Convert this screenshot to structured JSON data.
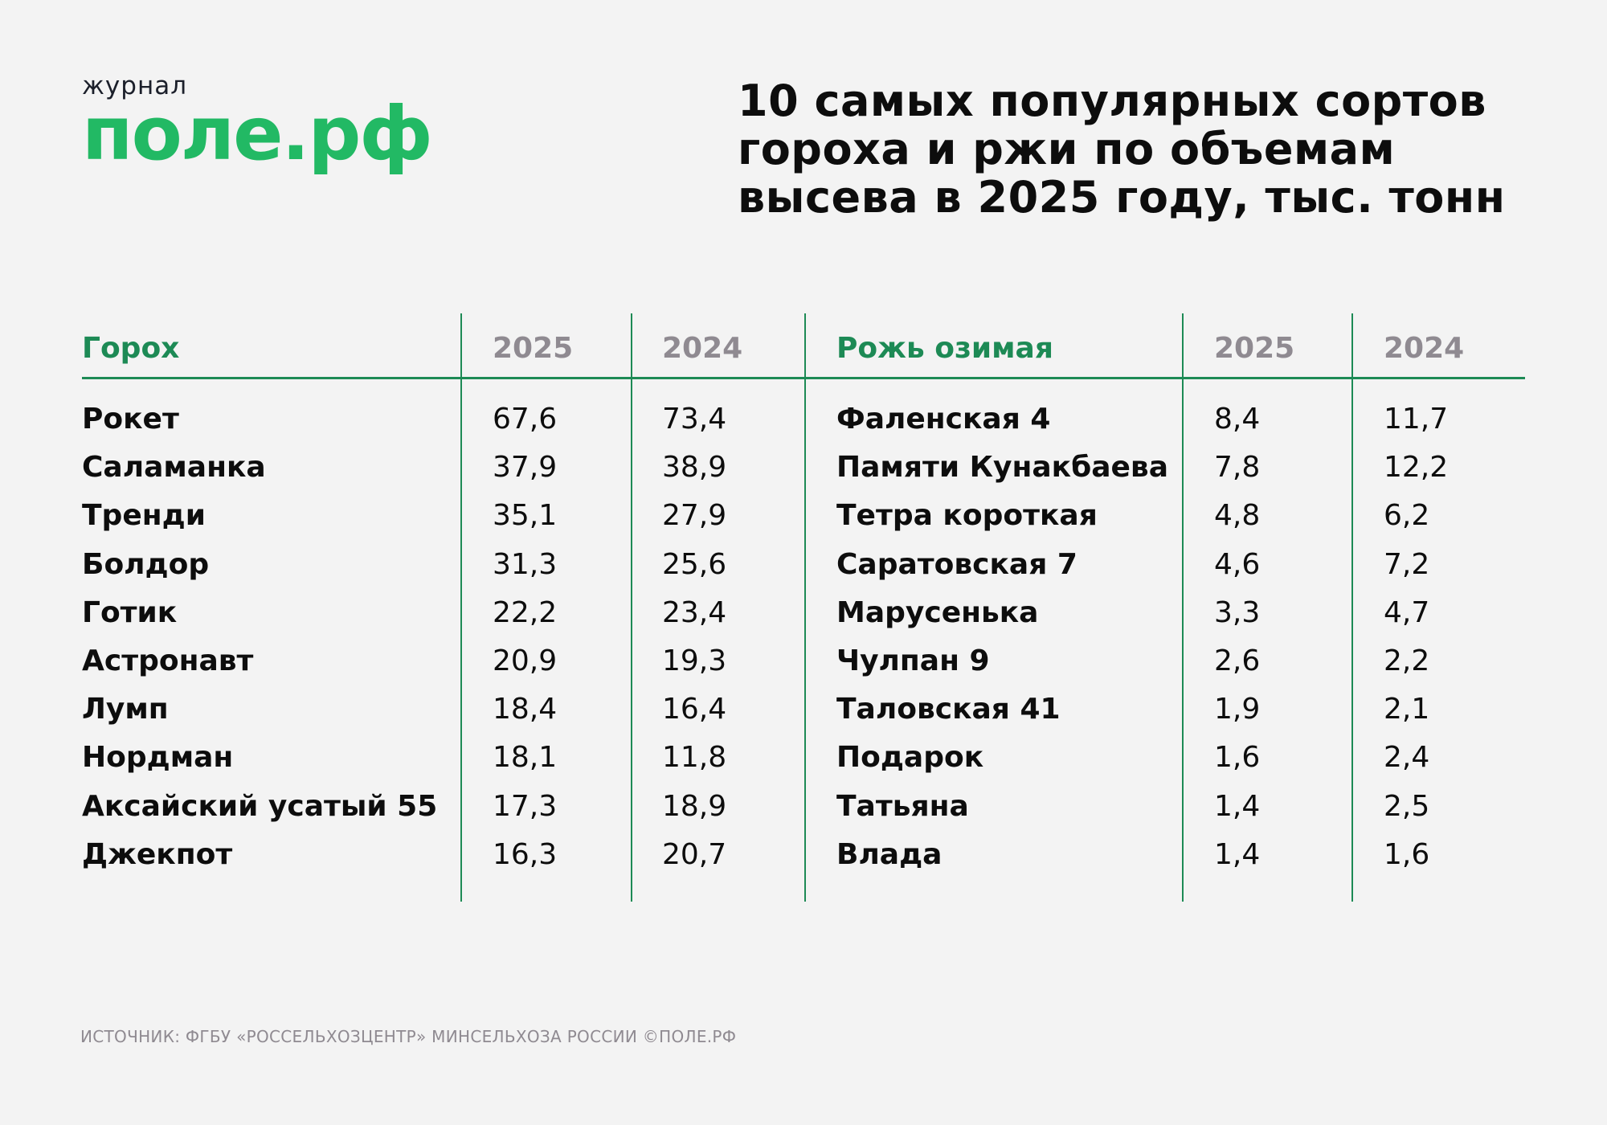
{
  "logo": {
    "top": "журнал",
    "main": "поле.рф"
  },
  "title": "10 самых популярных сортов гороха и ржи по объемам высева в 2025 году, тыс. тонн",
  "colors": {
    "accent": "#1d8a55",
    "logo_green": "#22b964",
    "muted": "#8f8a91",
    "background": "#f3f3f3"
  },
  "tables": {
    "peas": {
      "header": "Горох",
      "col_2025": "2025",
      "col_2024": "2024",
      "rows": [
        {
          "name": "Рокет",
          "v2025": "67,6",
          "v2024": "73,4"
        },
        {
          "name": "Саламанка",
          "v2025": "37,9",
          "v2024": "38,9"
        },
        {
          "name": "Тренди",
          "v2025": "35,1",
          "v2024": "27,9"
        },
        {
          "name": "Болдор",
          "v2025": "31,3",
          "v2024": "25,6"
        },
        {
          "name": "Готик",
          "v2025": "22,2",
          "v2024": "23,4"
        },
        {
          "name": "Астронавт",
          "v2025": "20,9",
          "v2024": "19,3"
        },
        {
          "name": "Лумп",
          "v2025": "18,4",
          "v2024": "16,4"
        },
        {
          "name": "Нордман",
          "v2025": "18,1",
          "v2024": "11,8"
        },
        {
          "name": "Аксайский усатый 55",
          "v2025": "17,3",
          "v2024": "18,9"
        },
        {
          "name": "Джекпот",
          "v2025": "16,3",
          "v2024": "20,7"
        }
      ]
    },
    "rye": {
      "header": "Рожь озимая",
      "col_2025": "2025",
      "col_2024": "2024",
      "rows": [
        {
          "name": "Фаленская 4",
          "v2025": "8,4",
          "v2024": "11,7"
        },
        {
          "name": "Памяти Кунакбаева",
          "v2025": "7,8",
          "v2024": "12,2"
        },
        {
          "name": "Тетра короткая",
          "v2025": "4,8",
          "v2024": "6,2"
        },
        {
          "name": "Саратовская 7",
          "v2025": "4,6",
          "v2024": "7,2"
        },
        {
          "name": "Марусенька",
          "v2025": "3,3",
          "v2024": "4,7"
        },
        {
          "name": "Чулпан 9",
          "v2025": "2,6",
          "v2024": "2,2"
        },
        {
          "name": "Таловская 41",
          "v2025": "1,9",
          "v2024": "2,1"
        },
        {
          "name": "Подарок",
          "v2025": "1,6",
          "v2024": "2,4"
        },
        {
          "name": "Татьяна",
          "v2025": "1,4",
          "v2024": "2,5"
        },
        {
          "name": "Влада",
          "v2025": "1,4",
          "v2024": "1,6"
        }
      ]
    }
  },
  "source": "ИСТОЧНИК: ФГБУ «РОССЕЛЬХОЗЦЕНТР» МИНСЕЛЬХОЗА РОССИИ ©ПОЛЕ.РФ"
}
